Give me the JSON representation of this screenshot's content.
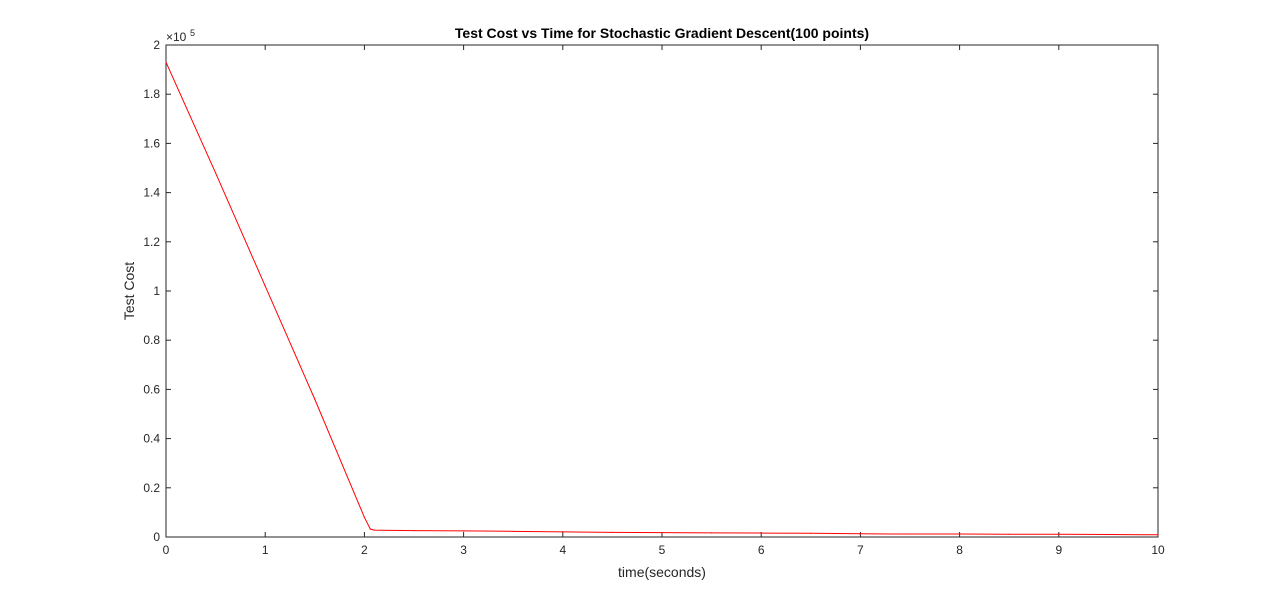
{
  "chart_data": {
    "type": "line",
    "title": "Test Cost vs Time for Stochastic Gradient Descent(100 points)",
    "xlabel": "time(seconds)",
    "ylabel": "Test Cost",
    "xlim": [
      0,
      10
    ],
    "ylim": [
      0,
      2
    ],
    "x_ticks": [
      0,
      1,
      2,
      3,
      4,
      5,
      6,
      7,
      8,
      9,
      10
    ],
    "x_tick_labels": [
      "0",
      "1",
      "2",
      "3",
      "4",
      "5",
      "6",
      "7",
      "8",
      "9",
      "10"
    ],
    "y_ticks": [
      0,
      0.2,
      0.4,
      0.6,
      0.8,
      1,
      1.2,
      1.4,
      1.6,
      1.8,
      2
    ],
    "y_tick_labels": [
      "0",
      "0.2",
      "0.4",
      "0.6",
      "0.8",
      "1",
      "1.2",
      "1.4",
      "1.6",
      "1.8",
      "2"
    ],
    "y_exponent_base": "×10",
    "y_exponent_power": "5",
    "grid": false,
    "series": [
      {
        "color": "#ff0000",
        "x": [
          0,
          0.5,
          1.0,
          1.5,
          2.0,
          2.06,
          2.1,
          2.5,
          3,
          3.5,
          4,
          4.5,
          5,
          5.5,
          6,
          6.5,
          7,
          7.5,
          8,
          8.5,
          9,
          9.5,
          10
        ],
        "y": [
          1.93,
          1.48,
          1.02,
          0.56,
          0.08,
          0.032,
          0.028,
          0.026,
          0.025,
          0.023,
          0.021,
          0.019,
          0.018,
          0.017,
          0.016,
          0.015,
          0.013,
          0.012,
          0.012,
          0.011,
          0.011,
          0.01,
          0.009
        ]
      }
    ]
  }
}
